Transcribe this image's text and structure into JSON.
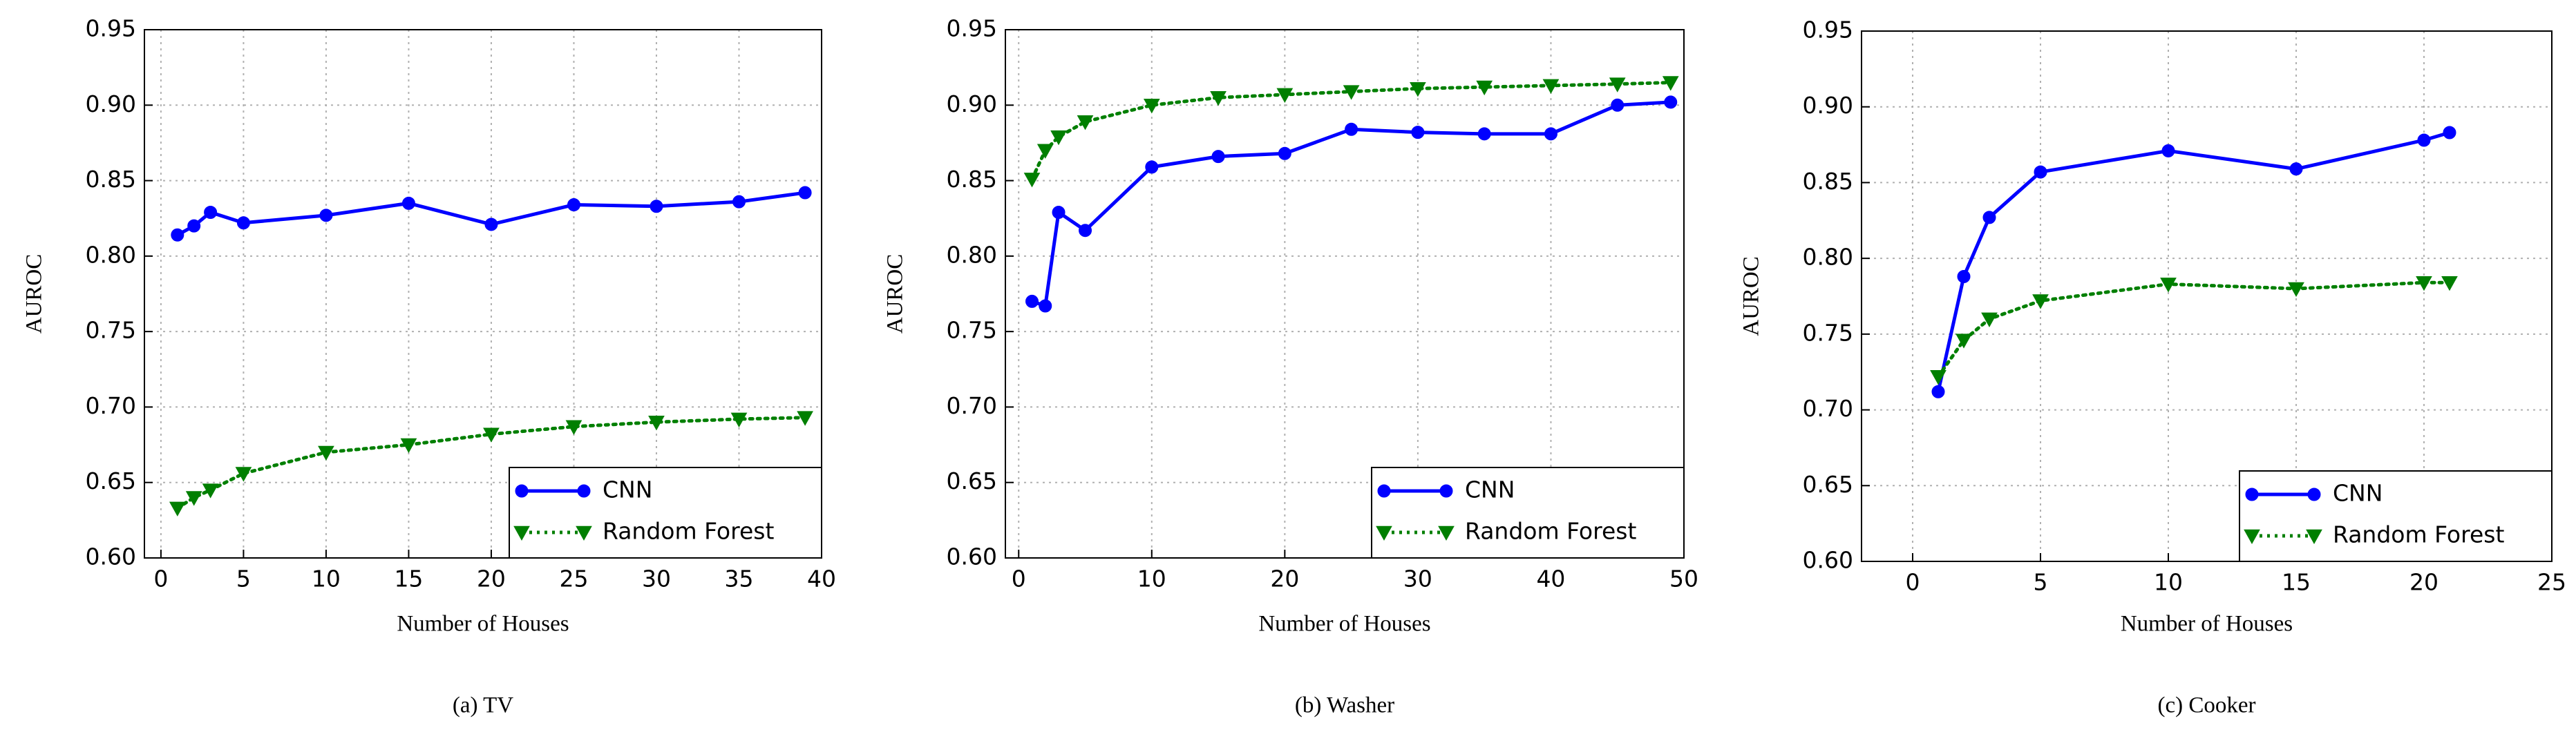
{
  "chart_data": [
    {
      "type": "line",
      "title": "(a) TV",
      "xlabel": "Number of Houses",
      "ylabel": "AUROC",
      "x": [
        1,
        2,
        3,
        5,
        10,
        15,
        20,
        25,
        30,
        35,
        39
      ],
      "series": [
        {
          "name": "CNN",
          "color": "#0000ff",
          "linestyle": "solid",
          "marker": "circle",
          "values": [
            0.814,
            0.82,
            0.829,
            0.822,
            0.827,
            0.835,
            0.821,
            0.834,
            0.833,
            0.836,
            0.842
          ]
        },
        {
          "name": "Random Forest",
          "color": "#007f00",
          "linestyle": "dotted",
          "marker": "triangle-down",
          "values": [
            0.633,
            0.64,
            0.645,
            0.656,
            0.67,
            0.675,
            0.682,
            0.687,
            0.69,
            0.692,
            0.693
          ]
        }
      ],
      "xlim": [
        -1,
        40
      ],
      "xticks": [
        0,
        5,
        10,
        15,
        20,
        25,
        30,
        35,
        40
      ],
      "ylim": [
        0.6,
        0.95
      ],
      "yticks": [
        {
          "value": 0.6,
          "label": "0.60"
        },
        0.65,
        {
          "value": 0.7,
          "label": "0.70"
        },
        0.75,
        {
          "value": 0.8,
          "label": "0.80"
        },
        0.85,
        {
          "value": 0.9,
          "label": "0.90"
        },
        0.95
      ],
      "grid": true,
      "legend": "lower right"
    },
    {
      "type": "line",
      "title": "(b) Washer",
      "xlabel": "Number of Houses",
      "ylabel": "AUROC",
      "x": [
        1,
        2,
        3,
        5,
        10,
        15,
        20,
        25,
        30,
        35,
        40,
        45,
        49
      ],
      "series": [
        {
          "name": "CNN",
          "color": "#0000ff",
          "linestyle": "solid",
          "marker": "circle",
          "values": [
            0.77,
            0.767,
            0.829,
            0.817,
            0.859,
            0.866,
            0.868,
            0.884,
            0.882,
            0.881,
            0.881,
            0.9,
            0.902
          ]
        },
        {
          "name": "Random Forest",
          "color": "#007f00",
          "linestyle": "dotted",
          "marker": "triangle-down",
          "values": [
            0.851,
            0.87,
            0.879,
            0.889,
            0.9,
            0.905,
            0.907,
            0.909,
            0.911,
            0.912,
            0.913,
            0.914,
            0.915
          ]
        }
      ],
      "xlim": [
        -1,
        50
      ],
      "xticks": [
        0,
        10,
        20,
        30,
        40,
        50
      ],
      "ylim": [
        0.6,
        0.95
      ],
      "yticks": [
        {
          "value": 0.6,
          "label": "0.60"
        },
        0.65,
        {
          "value": 0.7,
          "label": "0.70"
        },
        0.75,
        {
          "value": 0.8,
          "label": "0.80"
        },
        0.85,
        {
          "value": 0.9,
          "label": "0.90"
        },
        0.95
      ],
      "grid": true,
      "legend": "lower right"
    },
    {
      "type": "line",
      "title": "(c) Cooker",
      "xlabel": "Number of Houses",
      "ylabel": "AUROC",
      "x": [
        1,
        2,
        3,
        5,
        10,
        15,
        20,
        21
      ],
      "series": [
        {
          "name": "CNN",
          "color": "#0000ff",
          "linestyle": "solid",
          "marker": "circle",
          "values": [
            0.712,
            0.788,
            0.827,
            0.857,
            0.871,
            0.859,
            0.878,
            0.883
          ]
        },
        {
          "name": "Random Forest",
          "color": "#007f00",
          "linestyle": "dotted",
          "marker": "triangle-down",
          "values": [
            0.722,
            0.746,
            0.76,
            0.772,
            0.783,
            0.78,
            0.784,
            0.784
          ]
        }
      ],
      "xlim": [
        -2,
        25
      ],
      "xticks": [
        0,
        5,
        10,
        15,
        20,
        25
      ],
      "ylim": [
        0.6,
        0.95
      ],
      "yticks": [
        {
          "value": 0.6,
          "label": "0.60"
        },
        0.65,
        {
          "value": 0.7,
          "label": "0.70"
        },
        0.75,
        {
          "value": 0.8,
          "label": "0.80"
        },
        0.85,
        {
          "value": 0.9,
          "label": "0.90"
        },
        0.95
      ],
      "grid": true,
      "legend": "lower right"
    }
  ]
}
